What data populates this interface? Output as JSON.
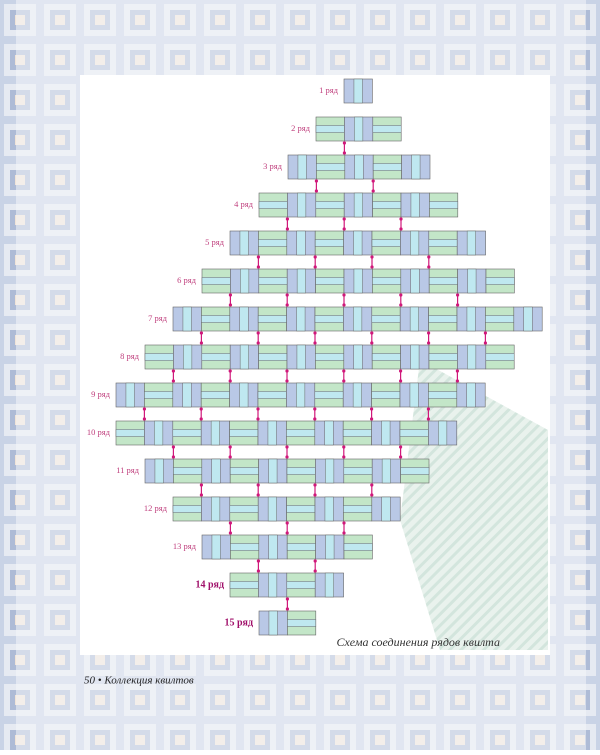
{
  "diagram": {
    "row_labels": [
      "1 ряд",
      "2 ряд",
      "3 ряд",
      "4 ряд",
      "5 ряд",
      "6 ряд",
      "7 ряд",
      "8 ряд",
      "9 ряд",
      "10 ряд",
      "11 ряд",
      "12 ряд",
      "13 ряд",
      "14 ряд",
      "15 ряд"
    ],
    "caption": "Схема соединения рядов квилта"
  },
  "footer": {
    "page": "50 • Коллекция квилтов"
  }
}
